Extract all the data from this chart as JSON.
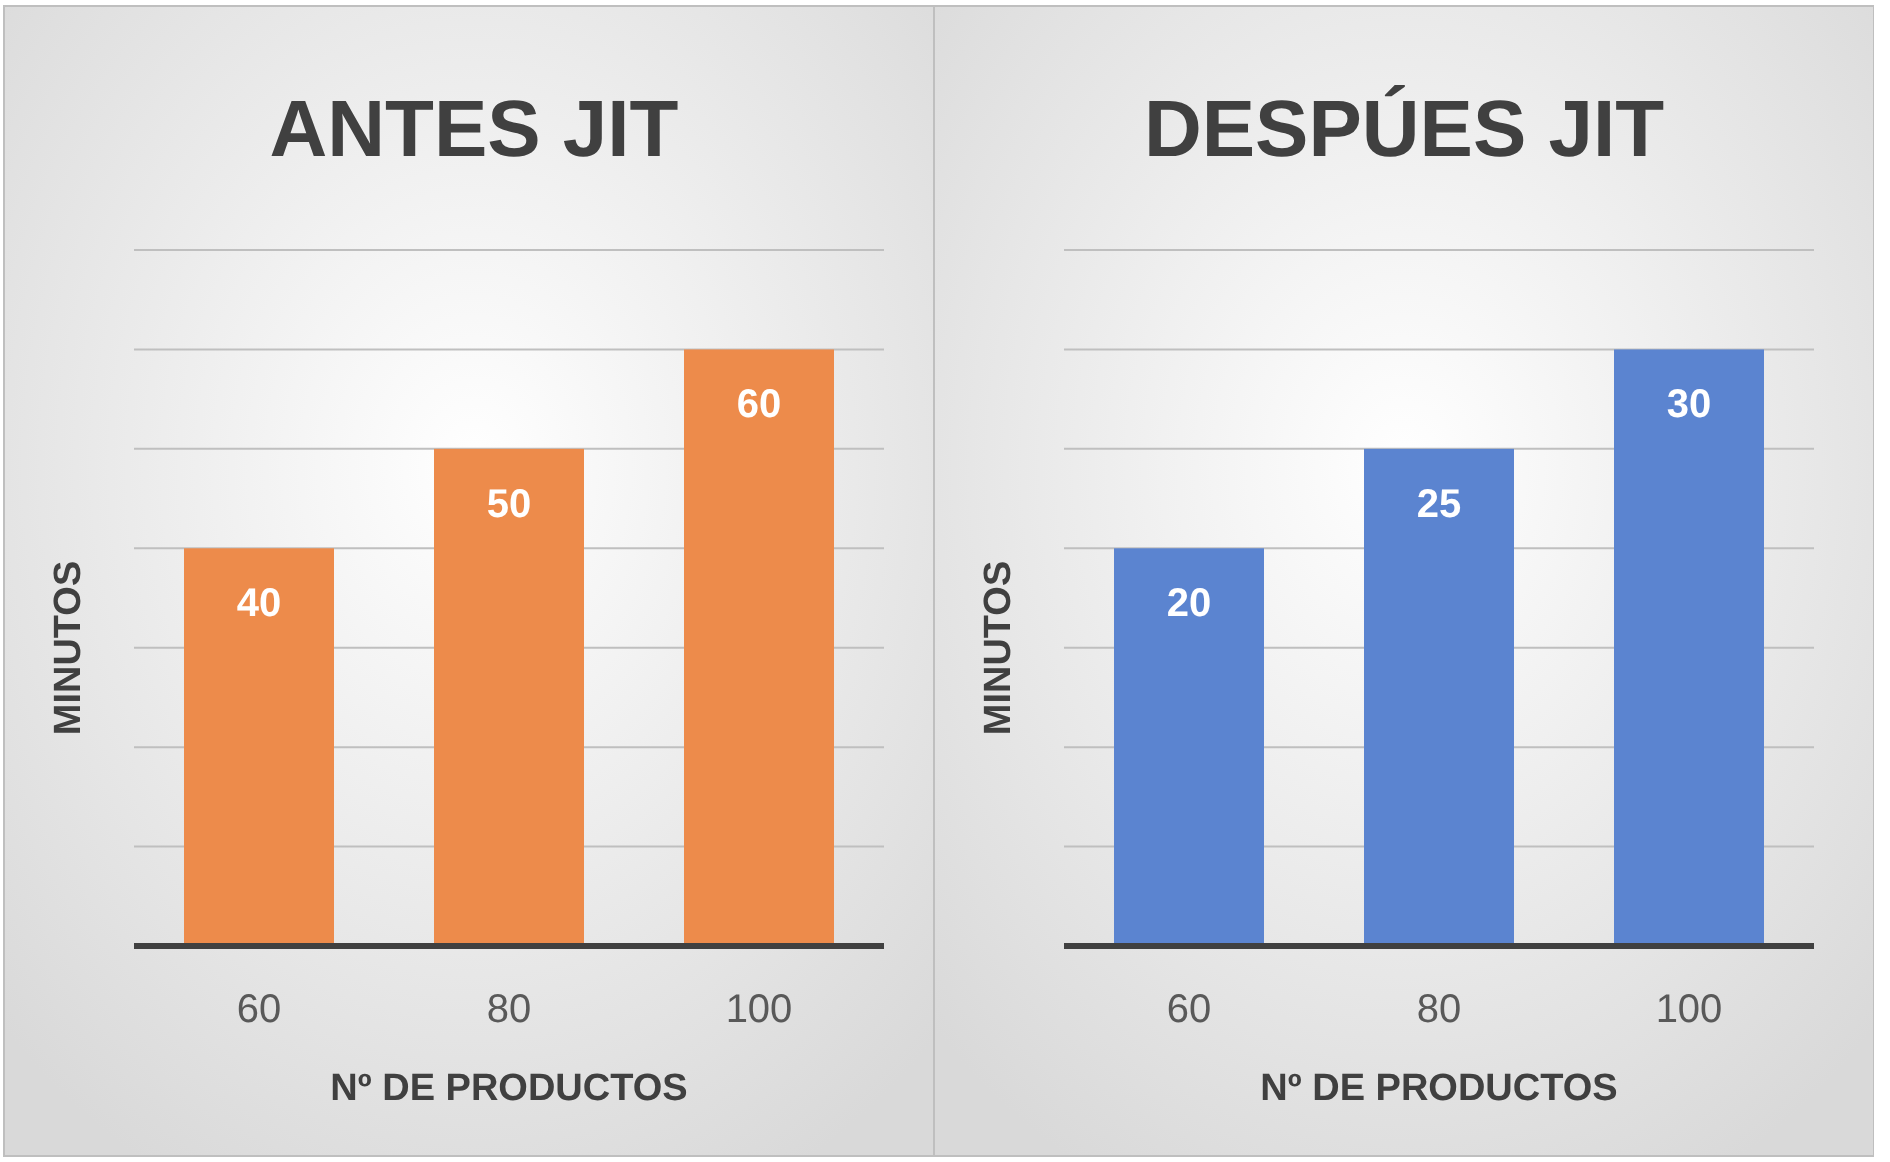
{
  "chart_data": [
    {
      "type": "bar",
      "title": "ANTES JIT",
      "xlabel": "Nº DE PRODUCTOS",
      "ylabel": "MINUTOS",
      "categories": [
        "60",
        "80",
        "100"
      ],
      "values": [
        40,
        50,
        60
      ],
      "color": "#ed8b4b",
      "ylim": [
        0,
        70
      ],
      "yticks": [
        {
          "value": 0,
          "label": null
        },
        {
          "value": 10,
          "label": null
        },
        {
          "value": 20,
          "label": null
        },
        {
          "value": 30,
          "label": null
        },
        {
          "value": 40,
          "label": null
        },
        {
          "value": 50,
          "label": null
        },
        {
          "value": 60,
          "label": null
        },
        {
          "value": 70,
          "label": null
        }
      ],
      "tick_labels": "x",
      "grid": "y",
      "data_labels": true
    },
    {
      "type": "bar",
      "title": "DESPÚES JIT",
      "xlabel": "Nº DE PRODUCTOS",
      "ylabel": "MINUTOS",
      "categories": [
        "60",
        "80",
        "100"
      ],
      "values": [
        20,
        25,
        30
      ],
      "color": "#5b84d0",
      "ylim": [
        0,
        35
      ],
      "yticks": [
        {
          "value": 0,
          "label": null
        },
        {
          "value": 5,
          "label": null
        },
        {
          "value": 10,
          "label": null
        },
        {
          "value": 15,
          "label": null
        },
        {
          "value": 20,
          "label": null
        },
        {
          "value": 25,
          "label": null
        },
        {
          "value": 30,
          "label": null
        },
        {
          "value": 35,
          "label": null
        }
      ],
      "tick_labels": "x",
      "grid": "y",
      "data_labels": true
    }
  ]
}
